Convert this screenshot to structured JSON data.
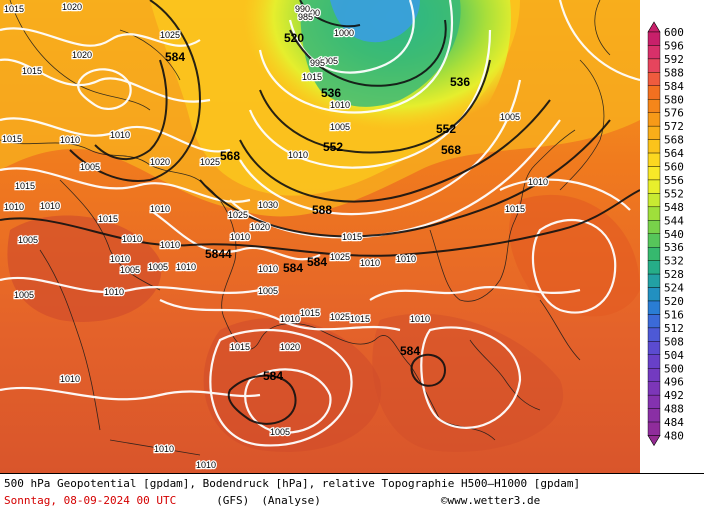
{
  "title": "500 hPa Geopotential [gpdam], Bodendruck [hPa], relative Topographie H500–H1000 [gpdam]",
  "footer": {
    "date_line": "Sonntag, 08-09-2024  00 UTC",
    "model": "(GFS)",
    "analysis": "(Analyse)",
    "copyright_symbol": "©",
    "copyright": "www.wetter3.de"
  },
  "colorbar": {
    "labels": [
      "600",
      "596",
      "592",
      "588",
      "584",
      "580",
      "576",
      "572",
      "568",
      "564",
      "560",
      "556",
      "552",
      "548",
      "544",
      "540",
      "536",
      "532",
      "528",
      "524",
      "520",
      "516",
      "512",
      "508",
      "504",
      "500",
      "496",
      "492",
      "488",
      "484",
      "480"
    ],
    "colors": [
      "#c8206a",
      "#d8306a",
      "#e6455d",
      "#ef5b3e",
      "#f27020",
      "#f5861a",
      "#f79a18",
      "#f9ae19",
      "#fbc31b",
      "#fcd720",
      "#f8e828",
      "#e8ef2c",
      "#c8ea32",
      "#9fdf3b",
      "#78d24a",
      "#56c65a",
      "#36b96e",
      "#26ad88",
      "#22a0a4",
      "#2290c0",
      "#2a7dd4",
      "#3b6ad8",
      "#4d59d6",
      "#5b4bd0",
      "#6840c8",
      "#733ac0",
      "#7c36b8",
      "#8432af",
      "#8a2fa5",
      "#8f2c9b",
      "#942a92"
    ]
  },
  "map": {
    "gph_labels": [
      "584",
      "520",
      "536",
      "536",
      "552",
      "568",
      "552",
      "568",
      "588",
      "5844",
      "584",
      "584",
      "584",
      "584"
    ],
    "pressure_labels": [
      "1015",
      "1020",
      "1025",
      "1015",
      "1020",
      "1015",
      "1010",
      "1005",
      "1010",
      "1015",
      "1020",
      "1025",
      "1030",
      "1010",
      "1015",
      "1000",
      "1005",
      "995",
      "990",
      "985",
      "1000",
      "1005",
      "1010",
      "1015",
      "1025",
      "1010",
      "1010",
      "1015",
      "1010",
      "1005",
      "1010",
      "1010",
      "1005",
      "1005",
      "1010",
      "1005",
      "1010",
      "1010",
      "1010",
      "1005",
      "1010",
      "1015",
      "1010",
      "1010",
      "1020",
      "1025",
      "1015",
      "1010",
      "1005",
      "1010",
      "1015",
      "1020",
      "1010",
      "1025",
      "1015",
      "1005",
      "1010",
      "1010",
      "1010"
    ]
  }
}
